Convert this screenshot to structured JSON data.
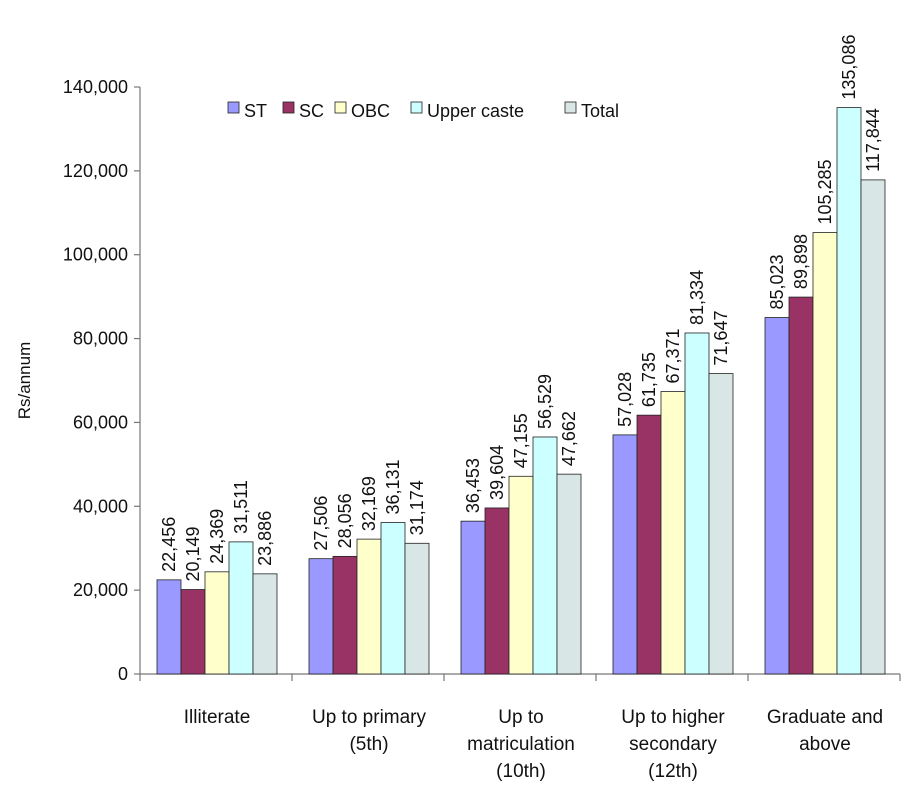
{
  "chart_data": {
    "type": "bar",
    "title": "",
    "xlabel": "",
    "ylabel": "Rs/annum",
    "ylim": [
      0,
      140000
    ],
    "yticks": [
      "0",
      "20,000",
      "40,000",
      "60,000",
      "80,000",
      "100,000",
      "120,000",
      "140,000"
    ],
    "categories": [
      [
        "Illiterate"
      ],
      [
        "Up to primary",
        "(5th)"
      ],
      [
        "Up to",
        "matriculation",
        "(10th)"
      ],
      [
        "Up to higher",
        "secondary",
        "(12th)"
      ],
      [
        "Graduate and",
        "above"
      ]
    ],
    "legend_position": "top-center",
    "grid": false,
    "series": [
      {
        "name": "ST",
        "color": "#9999ff",
        "values": [
          22456,
          27506,
          36453,
          57028,
          85023
        ],
        "labels": [
          "22,456",
          "27,506",
          "36,453",
          "57,028",
          "85,023"
        ]
      },
      {
        "name": "SC",
        "color": "#993366",
        "values": [
          20149,
          28056,
          39604,
          61735,
          89898
        ],
        "labels": [
          "20,149",
          "28,056",
          "39,604",
          "61,735",
          "89,898"
        ]
      },
      {
        "name": "OBC",
        "color": "#ffffcc",
        "values": [
          24369,
          32169,
          47155,
          67371,
          105285
        ],
        "labels": [
          "24,369",
          "32,169",
          "47,155",
          "67,371",
          "105,285"
        ]
      },
      {
        "name": "Upper caste",
        "color": "#ccffff",
        "values": [
          31511,
          36131,
          56529,
          81334,
          135086
        ],
        "labels": [
          "31,511",
          "36,131",
          "56,529",
          "81,334",
          "135,086"
        ]
      },
      {
        "name": "Total",
        "color": "#d9e6e6",
        "values": [
          23886,
          31174,
          47662,
          71647,
          117844
        ],
        "labels": [
          "23,886",
          "31,174",
          "47,662",
          "71,647",
          "117,844"
        ]
      }
    ]
  }
}
